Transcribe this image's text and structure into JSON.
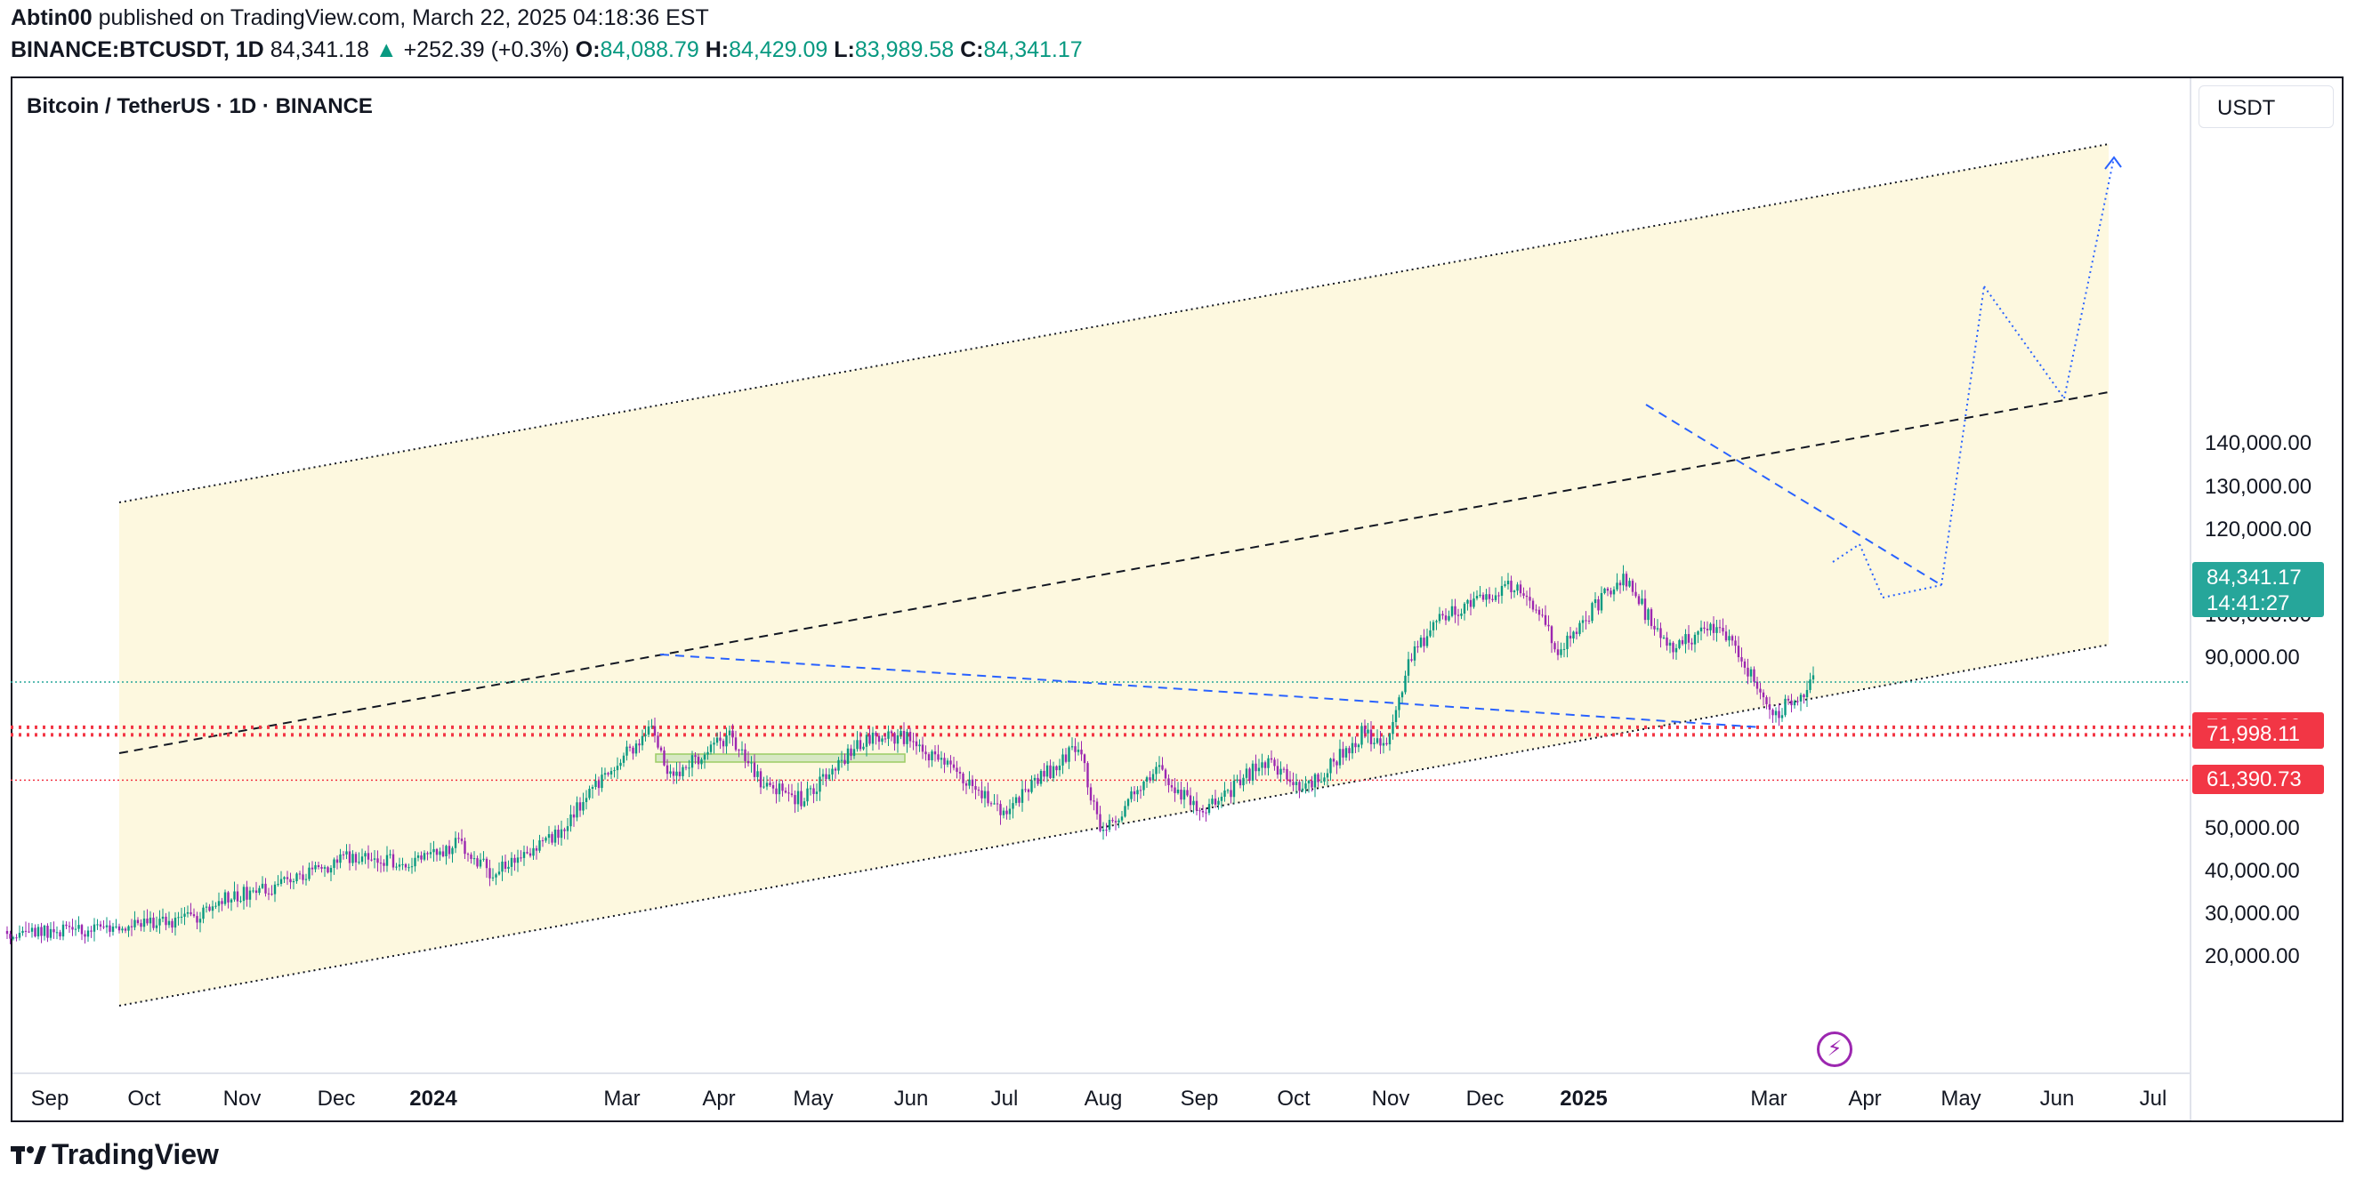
{
  "header": {
    "author": "Abtin00",
    "published_text": "published on TradingView.com, March 22, 2025 04:18:36 EST",
    "symbol": "BINANCE:BTCUSDT, 1D",
    "last": "84,341.18",
    "change_arrow": "▲",
    "change": "+252.39 (+0.3%)",
    "o_label": "O:",
    "o_value": "84,088.79",
    "h_label": "H:",
    "h_value": "84,429.09",
    "l_label": "L:",
    "l_value": "83,989.58",
    "c_label": "C:",
    "c_value": "84,341.17"
  },
  "chart": {
    "title": "Bitcoin / TetherUS · 1D · BINANCE",
    "currency_button": "USDT",
    "price_scale": [
      "140,000.00",
      "130,000.00",
      "120,000.00",
      "110,000.00",
      "100,000.00",
      "90,000.00",
      "50,000.00",
      "40,000.00",
      "30,000.00",
      "20,000.00"
    ],
    "price_scale_values": [
      140000,
      130000,
      120000,
      110000,
      100000,
      90000,
      50000,
      40000,
      30000,
      20000
    ],
    "last_price_tag": {
      "value": "84,341.17",
      "countdown": "14:41:27",
      "color": "#26a69a"
    },
    "level_tags": [
      {
        "value": "73,769.30",
        "color": "#f23645"
      },
      {
        "value": "71,998.11",
        "color": "#f23645"
      },
      {
        "value": "61,390.73",
        "color": "#f23645"
      }
    ],
    "time_axis": [
      {
        "label": "Sep",
        "bold": false
      },
      {
        "label": "Oct",
        "bold": false
      },
      {
        "label": "Nov",
        "bold": false
      },
      {
        "label": "Dec",
        "bold": false
      },
      {
        "label": "2024",
        "bold": true
      },
      {
        "label": "Mar",
        "bold": false
      },
      {
        "label": "Apr",
        "bold": false
      },
      {
        "label": "May",
        "bold": false
      },
      {
        "label": "Jun",
        "bold": false
      },
      {
        "label": "Jul",
        "bold": false
      },
      {
        "label": "Aug",
        "bold": false
      },
      {
        "label": "Sep",
        "bold": false
      },
      {
        "label": "Oct",
        "bold": false
      },
      {
        "label": "Nov",
        "bold": false
      },
      {
        "label": "Dec",
        "bold": false
      },
      {
        "label": "2025",
        "bold": true
      },
      {
        "label": "Mar",
        "bold": false
      },
      {
        "label": "Apr",
        "bold": false
      },
      {
        "label": "May",
        "bold": false
      },
      {
        "label": "Jun",
        "bold": false
      },
      {
        "label": "Jul",
        "bold": false
      }
    ],
    "colors": {
      "up": "#089981",
      "down": "#9c27b0",
      "channel_fill": "#fdf8df",
      "projection": "#2962ff"
    }
  },
  "chart_data": {
    "type": "candlestick",
    "series": [
      {
        "name": "BINANCE:BTCUSDT, 1D",
        "price_path": [
          [
            "2023-08-20",
            26100
          ],
          [
            "2023-09-15",
            26600
          ],
          [
            "2023-10-01",
            27000
          ],
          [
            "2023-10-20",
            29500
          ],
          [
            "2023-10-28",
            34200
          ],
          [
            "2023-11-20",
            37300
          ],
          [
            "2023-12-05",
            43000
          ],
          [
            "2023-12-31",
            42500
          ],
          [
            "2024-01-12",
            46500
          ],
          [
            "2024-01-23",
            39500
          ],
          [
            "2024-02-10",
            47000
          ],
          [
            "2024-02-28",
            62000
          ],
          [
            "2024-03-14",
            73700
          ],
          [
            "2024-03-20",
            62000
          ],
          [
            "2024-04-08",
            71500
          ],
          [
            "2024-04-18",
            61000
          ],
          [
            "2024-05-01",
            57000
          ],
          [
            "2024-05-21",
            71000
          ],
          [
            "2024-06-05",
            71500
          ],
          [
            "2024-06-24",
            60000
          ],
          [
            "2024-07-05",
            54000
          ],
          [
            "2024-07-29",
            69500
          ],
          [
            "2024-08-05",
            49000
          ],
          [
            "2024-08-24",
            64000
          ],
          [
            "2024-09-06",
            53000
          ],
          [
            "2024-09-27",
            66000
          ],
          [
            "2024-10-10",
            59000
          ],
          [
            "2024-10-29",
            73000
          ],
          [
            "2024-11-05",
            68000
          ],
          [
            "2024-11-13",
            91000
          ],
          [
            "2024-11-22",
            99000
          ],
          [
            "2024-12-05",
            103000
          ],
          [
            "2024-12-17",
            108000
          ],
          [
            "2024-12-30",
            92000
          ],
          [
            "2025-01-20",
            109500
          ],
          [
            "2025-02-03",
            92000
          ],
          [
            "2025-02-20",
            98000
          ],
          [
            "2025-03-10",
            77000
          ],
          [
            "2025-03-22",
            84341
          ]
        ]
      }
    ],
    "price_levels": [
      73769.3,
      71998.11,
      61390.73
    ],
    "projection_targets": [
      90000,
      79000,
      124000,
      109000,
      142000
    ],
    "y_range": [
      18000,
      148000
    ],
    "grid": false
  }
}
